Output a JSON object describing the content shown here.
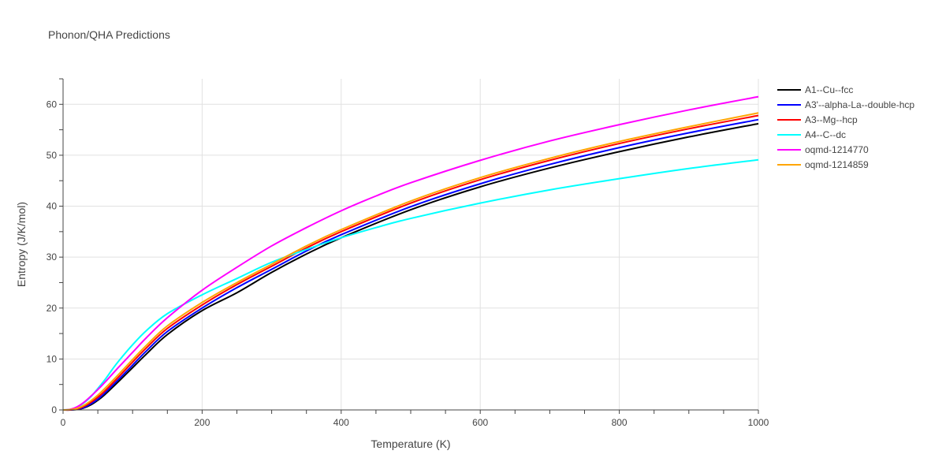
{
  "chart_data": {
    "type": "line",
    "title": "Phonon/QHA Predictions",
    "xlabel": "Temperature (K)",
    "ylabel": "Entropy (J/K/mol)",
    "xlim": [
      0,
      1000
    ],
    "ylim": [
      0,
      65
    ],
    "xticks": [
      0,
      200,
      400,
      600,
      800,
      1000
    ],
    "yticks": [
      0,
      10,
      20,
      30,
      40,
      50,
      60
    ],
    "grid": true,
    "legend_position": "top-right",
    "series": [
      {
        "name": "A1--Cu--fcc",
        "color": "#000000",
        "x": [
          0,
          10,
          20,
          30,
          40,
          50,
          60,
          80,
          100,
          120,
          150,
          200,
          250,
          300,
          350,
          400,
          500,
          600,
          700,
          800,
          900,
          1000
        ],
        "y": [
          0,
          0,
          0.1,
          0.4,
          1.0,
          1.9,
          3.0,
          5.6,
          8.3,
          11.0,
          14.8,
          19.5,
          23.0,
          27.0,
          30.6,
          33.8,
          39.3,
          43.8,
          47.5,
          50.7,
          53.6,
          56.2
        ]
      },
      {
        "name": "A3'--alpha-La--double-hcp",
        "color": "#0000ff",
        "x": [
          0,
          10,
          20,
          30,
          40,
          50,
          60,
          80,
          100,
          120,
          150,
          200,
          250,
          300,
          350,
          400,
          500,
          600,
          700,
          800,
          900,
          1000
        ],
        "y": [
          0,
          0,
          0.15,
          0.5,
          1.2,
          2.1,
          3.3,
          6.0,
          8.8,
          11.6,
          15.4,
          20.0,
          24.0,
          27.6,
          31.2,
          34.4,
          39.9,
          44.4,
          48.2,
          51.5,
          54.4,
          57.0
        ]
      },
      {
        "name": "A3--Mg--hcp",
        "color": "#ff0000",
        "x": [
          0,
          10,
          20,
          30,
          40,
          50,
          60,
          80,
          100,
          120,
          150,
          200,
          250,
          300,
          350,
          400,
          500,
          600,
          700,
          800,
          900,
          1000
        ],
        "y": [
          0,
          0,
          0.2,
          0.7,
          1.5,
          2.5,
          3.7,
          6.5,
          9.4,
          12.2,
          16.0,
          20.6,
          24.6,
          28.2,
          31.8,
          35.0,
          40.6,
          45.2,
          49.0,
          52.3,
          55.2,
          57.8
        ]
      },
      {
        "name": "A4--C--dc",
        "color": "#00ffff",
        "x": [
          0,
          10,
          20,
          30,
          40,
          50,
          60,
          70,
          80,
          100,
          120,
          150,
          200,
          250,
          300,
          350,
          400,
          450,
          500,
          600,
          700,
          800,
          900,
          1000
        ],
        "y": [
          0,
          0.1,
          0.5,
          1.4,
          2.6,
          4.2,
          5.9,
          7.8,
          9.6,
          12.8,
          15.6,
          18.9,
          22.6,
          25.8,
          29.0,
          31.5,
          33.8,
          35.8,
          37.6,
          40.6,
          43.2,
          45.4,
          47.4,
          49.1
        ]
      },
      {
        "name": "oqmd-1214770",
        "color": "#ff00ff",
        "x": [
          0,
          10,
          20,
          30,
          40,
          50,
          60,
          80,
          100,
          120,
          150,
          200,
          250,
          300,
          350,
          400,
          450,
          500,
          600,
          700,
          800,
          900,
          1000
        ],
        "y": [
          0,
          0.1,
          0.6,
          1.5,
          2.7,
          4.0,
          5.4,
          8.4,
          11.3,
          14.2,
          18.1,
          23.5,
          28.0,
          32.2,
          35.8,
          39.1,
          42.0,
          44.6,
          49.0,
          52.8,
          56.0,
          58.9,
          61.5
        ]
      },
      {
        "name": "oqmd-1214859",
        "color": "#ffa500",
        "x": [
          0,
          10,
          20,
          30,
          40,
          50,
          60,
          80,
          100,
          120,
          150,
          200,
          250,
          300,
          350,
          400,
          500,
          600,
          700,
          800,
          900,
          1000
        ],
        "y": [
          0,
          0.05,
          0.3,
          0.9,
          1.8,
          2.9,
          4.2,
          7.0,
          9.9,
          12.7,
          16.5,
          21.1,
          25.0,
          28.6,
          32.2,
          35.4,
          41.0,
          45.6,
          49.4,
          52.7,
          55.6,
          58.3
        ]
      }
    ]
  }
}
